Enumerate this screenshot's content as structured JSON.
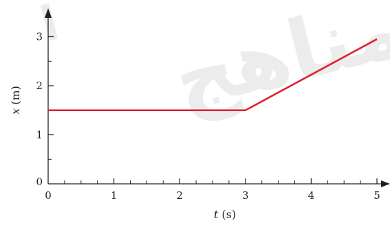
{
  "watermark": {
    "text": "مناهج",
    "small_text": "ا"
  },
  "chart_data": {
    "type": "line",
    "xlabel": {
      "var": "t",
      "unit": " (s)"
    },
    "ylabel": {
      "var": "x",
      "unit": " (m)"
    },
    "xlim": [
      0,
      5
    ],
    "ylim": [
      0,
      3.3
    ],
    "x_ticks": [
      0,
      1,
      2,
      3,
      4,
      5
    ],
    "x_tick_labels": [
      "0",
      "1",
      "2",
      "3",
      "4",
      "5"
    ],
    "x_minor_ticks": [
      0.25,
      0.5,
      0.75,
      1.25,
      1.5,
      1.75,
      2.25,
      2.5,
      2.75,
      3.25,
      3.5,
      3.75,
      4.25,
      4.5,
      4.75
    ],
    "y_ticks": [
      0,
      1,
      2,
      3
    ],
    "y_tick_labels": [
      "0",
      "1",
      "2",
      "3"
    ],
    "y_minor_ticks": [
      0.5,
      1.5,
      2.5
    ],
    "grid": false,
    "series": [
      {
        "color": "#e0202e",
        "points": [
          {
            "x": 0,
            "y": 1.5
          },
          {
            "x": 3,
            "y": 1.5
          },
          {
            "x": 5,
            "y": 2.95
          }
        ]
      }
    ]
  }
}
